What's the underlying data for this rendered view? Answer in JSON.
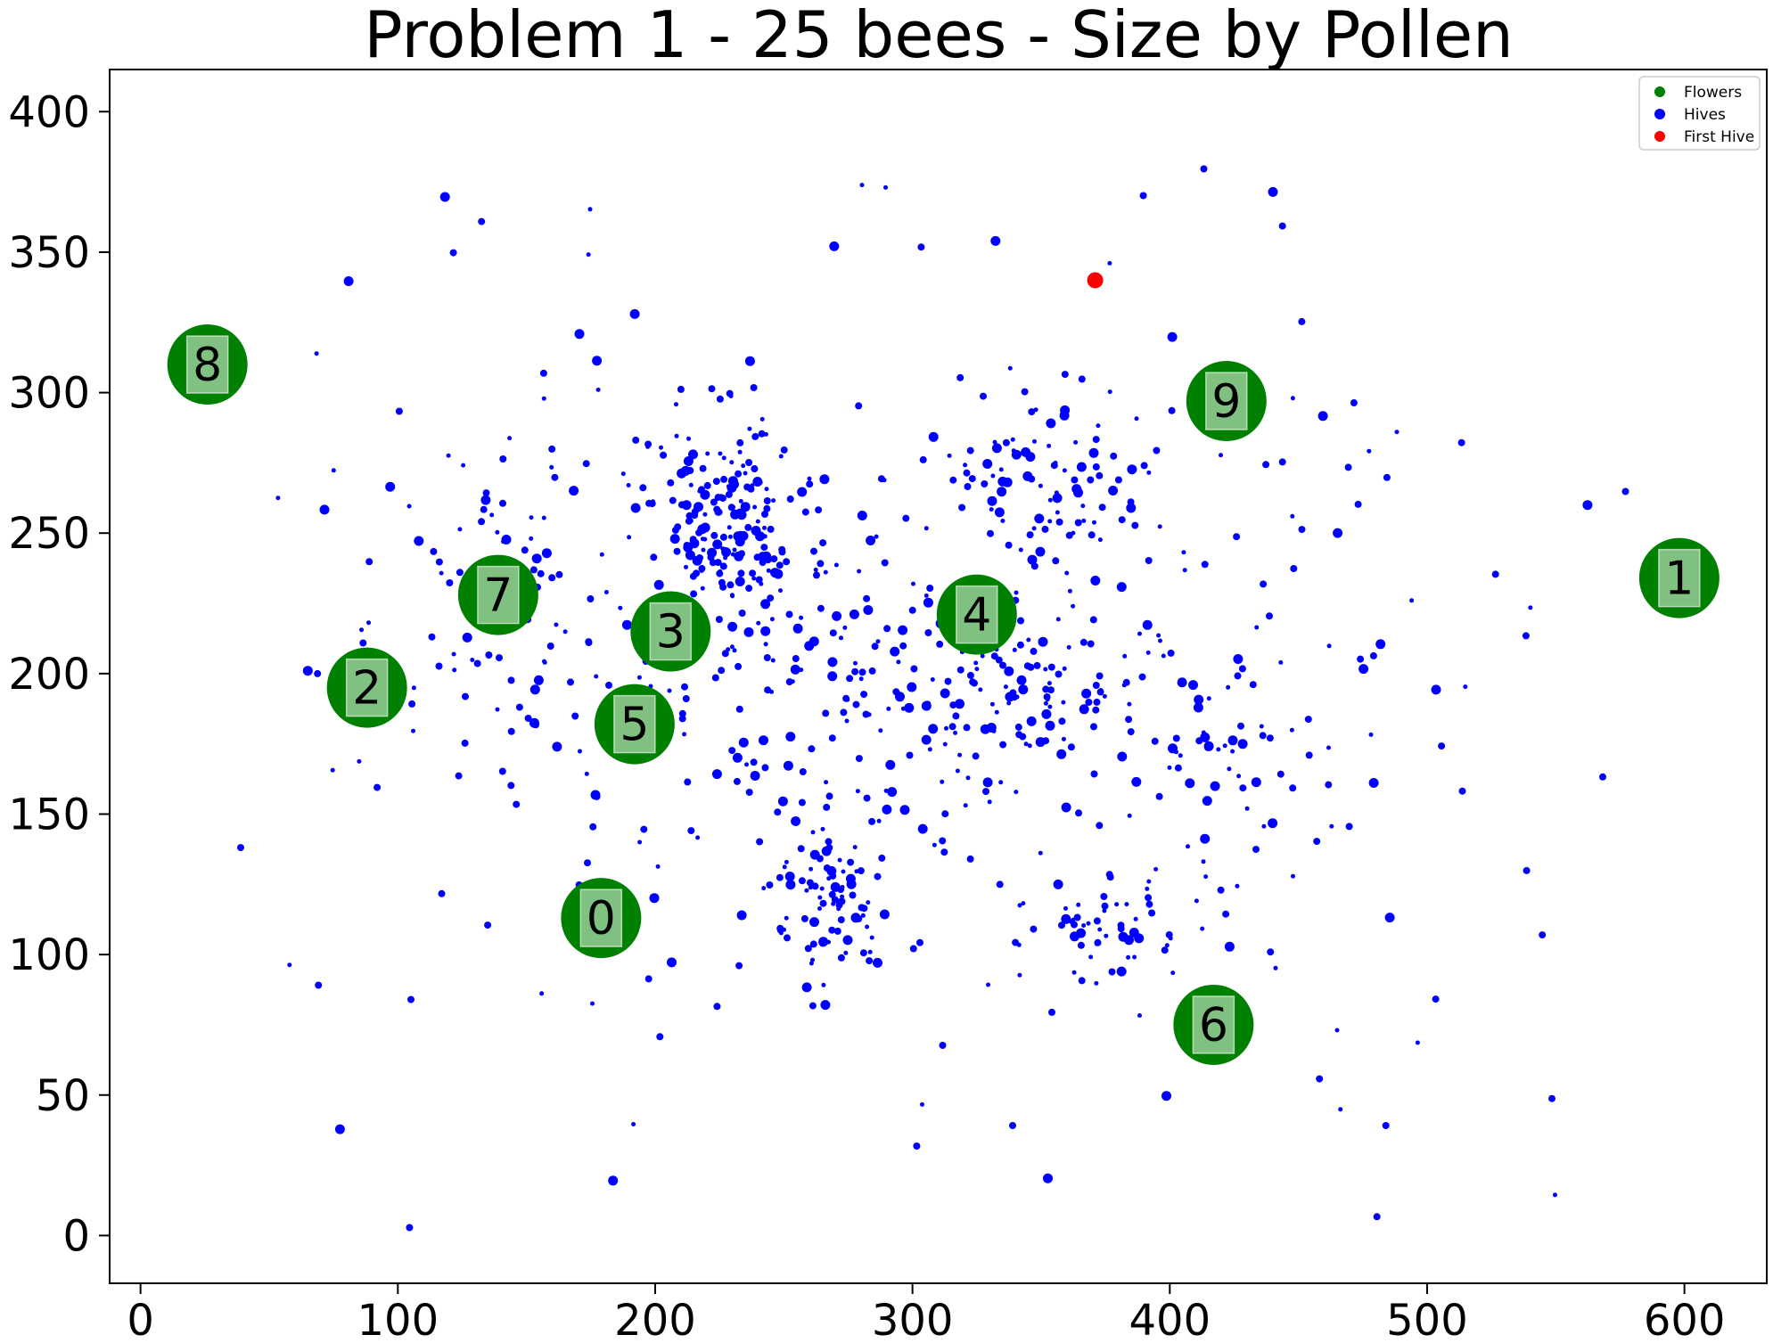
{
  "chart_data": {
    "type": "scatter",
    "title": "Problem 1 - 25 bees - Size by Pollen",
    "xlabel": "",
    "ylabel": "",
    "xlim": [
      -12,
      632
    ],
    "ylim": [
      -17,
      415
    ],
    "x_ticks": [
      0,
      100,
      200,
      300,
      400,
      500,
      600
    ],
    "y_ticks": [
      0,
      50,
      100,
      150,
      200,
      250,
      300,
      350,
      400
    ],
    "grid": false,
    "legend_position": "top-right",
    "legend": [
      {
        "label": "Flowers",
        "color": "#008000"
      },
      {
        "label": "Hives",
        "color": "#0000ff"
      },
      {
        "label": "First Hive",
        "color": "#ff0000"
      }
    ],
    "series": [
      {
        "name": "Flowers",
        "color": "#008000",
        "points": [
          {
            "x": 179,
            "y": 113,
            "label": "0"
          },
          {
            "x": 598,
            "y": 234,
            "label": "1"
          },
          {
            "x": 88,
            "y": 195,
            "label": "2"
          },
          {
            "x": 206,
            "y": 215,
            "label": "3"
          },
          {
            "x": 325,
            "y": 221,
            "label": "4"
          },
          {
            "x": 192,
            "y": 182,
            "label": "5"
          },
          {
            "x": 417,
            "y": 75,
            "label": "6"
          },
          {
            "x": 139,
            "y": 228,
            "label": "7"
          },
          {
            "x": 26,
            "y": 310,
            "label": "8"
          },
          {
            "x": 422,
            "y": 297,
            "label": "9"
          }
        ]
      },
      {
        "name": "Hives",
        "color": "#0000ff",
        "clusters": [
          {
            "cx": 225,
            "cy": 255,
            "sx": 14,
            "sy": 18,
            "n": 170
          },
          {
            "cx": 270,
            "cy": 120,
            "sx": 12,
            "sy": 14,
            "n": 80
          },
          {
            "cx": 350,
            "cy": 270,
            "sx": 22,
            "sy": 14,
            "n": 85
          },
          {
            "cx": 340,
            "cy": 195,
            "sx": 28,
            "sy": 18,
            "n": 110
          },
          {
            "cx": 375,
            "cy": 110,
            "sx": 22,
            "sy": 12,
            "n": 55
          },
          {
            "cx": 270,
            "cy": 205,
            "sx": 38,
            "sy": 38,
            "n": 140
          },
          {
            "cx": 145,
            "cy": 225,
            "sx": 30,
            "sy": 32,
            "n": 75
          },
          {
            "cx": 420,
            "cy": 175,
            "sx": 26,
            "sy": 22,
            "n": 60
          },
          {
            "cx": 300,
            "cy": 190,
            "sx": 140,
            "sy": 95,
            "n": 300
          }
        ]
      },
      {
        "name": "First Hive",
        "color": "#ff0000",
        "points": [
          {
            "x": 371,
            "y": 340
          }
        ]
      }
    ]
  }
}
